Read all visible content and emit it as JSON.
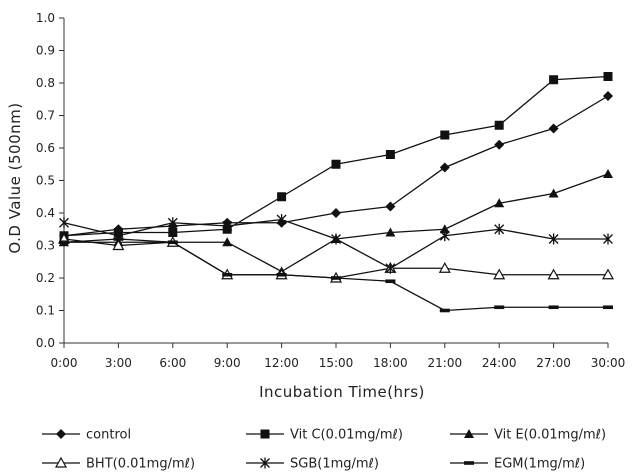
{
  "chart_data": {
    "type": "line",
    "title": "",
    "xlabel": "Incubation Time(hrs)",
    "ylabel": "O.D Value (500nm)",
    "ylim": [
      0,
      1.0
    ],
    "yticks": [
      "0.0",
      "0.1",
      "0.2",
      "0.3",
      "0.4",
      "0.5",
      "0.6",
      "0.7",
      "0.8",
      "0.9",
      "1.0"
    ],
    "x": [
      "0:00",
      "3:00",
      "6:00",
      "9:00",
      "12:00",
      "15:00",
      "18:00",
      "21:00",
      "24:00",
      "27:00",
      "30:00"
    ],
    "grid": false,
    "legend_position": "bottom",
    "series": [
      {
        "name": "control",
        "marker": "diamond",
        "values": [
          0.33,
          0.35,
          0.36,
          0.37,
          0.37,
          0.4,
          0.42,
          0.54,
          0.61,
          0.66,
          0.76
        ]
      },
      {
        "name": "Vit C(0.01mg/mℓ)",
        "marker": "square",
        "values": [
          0.33,
          0.34,
          0.34,
          0.35,
          0.45,
          0.55,
          0.58,
          0.64,
          0.67,
          0.81,
          0.82
        ]
      },
      {
        "name": "Vit E(0.01mg/mℓ)",
        "marker": "triangle",
        "values": [
          0.31,
          0.31,
          0.31,
          0.31,
          0.22,
          0.32,
          0.34,
          0.35,
          0.43,
          0.46,
          0.52
        ]
      },
      {
        "name": "BHT(0.01mg/mℓ)",
        "marker": "triangle-open",
        "values": [
          0.32,
          0.3,
          0.31,
          0.21,
          0.21,
          0.2,
          0.23,
          0.23,
          0.21,
          0.21,
          0.21
        ]
      },
      {
        "name": "SGB(1mg/mℓ)",
        "marker": "asterisk",
        "values": [
          0.37,
          0.33,
          0.37,
          0.36,
          0.38,
          0.32,
          0.23,
          0.33,
          0.35,
          0.32,
          0.32
        ]
      },
      {
        "name": "EGM(1mg/mℓ)",
        "marker": "bar",
        "values": [
          0.31,
          0.32,
          0.31,
          0.21,
          0.21,
          0.2,
          0.19,
          0.1,
          0.11,
          0.11,
          0.11
        ]
      }
    ]
  }
}
